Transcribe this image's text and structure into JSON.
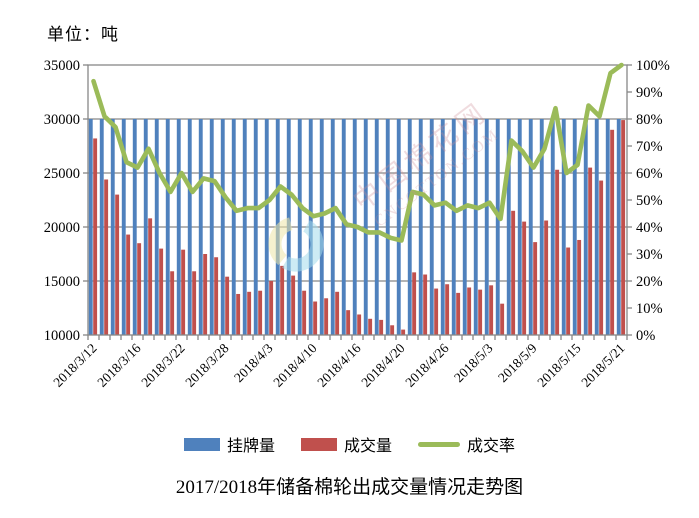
{
  "unit_label": "单位：吨",
  "main_title": "2017/2018年储备棉轮出成交量情况走势图",
  "watermark": {
    "line1": "中国棉花网",
    "line2": "CNCOTTON.COM"
  },
  "colors": {
    "listed_bar": "#4F81BD",
    "traded_bar": "#C0504D",
    "rate_line": "#9BBB59",
    "grid": "#878787",
    "text": "#000000",
    "watermark_cyan": "#A6DBEC",
    "watermark_yellow": "#EDE6A9"
  },
  "legend": [
    {
      "label": "挂牌量",
      "color": "#4F81BD",
      "type": "bar"
    },
    {
      "label": "成交量",
      "color": "#C0504D",
      "type": "bar"
    },
    {
      "label": "成交率",
      "color": "#9BBB59",
      "type": "line"
    }
  ],
  "chart_data": {
    "type": "bar+line combo",
    "grid": true,
    "legend_position": "bottom",
    "left_axis": {
      "min": 10000,
      "max": 35000,
      "step": 5000,
      "unit": "吨"
    },
    "right_axis": {
      "min": 0,
      "max": 100,
      "step": 10,
      "format": "percent"
    },
    "x_tick_every": 4,
    "categories": [
      "2018/3/12",
      "2018/3/13",
      "2018/3/14",
      "2018/3/15",
      "2018/3/16",
      "2018/3/19",
      "2018/3/20",
      "2018/3/21",
      "2018/3/22",
      "2018/3/23",
      "2018/3/26",
      "2018/3/27",
      "2018/3/28",
      "2018/3/29",
      "2018/3/30",
      "2018/4/2",
      "2018/4/3",
      "2018/4/4",
      "2018/4/8",
      "2018/4/9",
      "2018/4/10",
      "2018/4/11",
      "2018/4/12",
      "2018/4/13",
      "2018/4/16",
      "2018/4/17",
      "2018/4/18",
      "2018/4/19",
      "2018/4/20",
      "2018/4/23",
      "2018/4/24",
      "2018/4/25",
      "2018/4/26",
      "2018/4/27",
      "2018/4/28",
      "2018/5/2",
      "2018/5/3",
      "2018/5/4",
      "2018/5/7",
      "2018/5/8",
      "2018/5/9",
      "2018/5/10",
      "2018/5/11",
      "2018/5/14",
      "2018/5/15",
      "2018/5/16",
      "2018/5/17",
      "2018/5/18",
      "2018/5/21"
    ],
    "x_tick_labels": [
      "2018/3/12",
      "2018/3/16",
      "2018/3/22",
      "2018/3/28",
      "2018/4/3",
      "2018/4/10",
      "2018/4/16",
      "2018/4/20",
      "2018/4/26",
      "2018/5/3",
      "2018/5/9",
      "2018/5/15",
      "2018/5/21"
    ],
    "series": [
      {
        "name": "挂牌量",
        "type": "bar",
        "axis": "left",
        "color": "#4F81BD",
        "values": [
          30000,
          30000,
          30000,
          30000,
          30000,
          30000,
          30000,
          30000,
          30000,
          30000,
          30000,
          30000,
          30000,
          30000,
          30000,
          30000,
          30000,
          30000,
          30000,
          30000,
          30000,
          30000,
          30000,
          30000,
          30000,
          30000,
          30000,
          30000,
          30000,
          30000,
          30000,
          30000,
          30000,
          30000,
          30000,
          30000,
          30000,
          30000,
          30000,
          30000,
          30000,
          30000,
          30000,
          30000,
          30000,
          30000,
          30000,
          30000,
          30000
        ]
      },
      {
        "name": "成交量",
        "type": "bar",
        "axis": "left",
        "color": "#C0504D",
        "values": [
          28200,
          24400,
          23000,
          19300,
          18500,
          20800,
          18000,
          15900,
          17900,
          15900,
          17500,
          17200,
          15400,
          13800,
          14000,
          14100,
          15000,
          16400,
          15500,
          14100,
          13100,
          13400,
          14000,
          12300,
          11900,
          11500,
          11400,
          10900,
          10500,
          15800,
          15600,
          14300,
          14700,
          13900,
          14400,
          14200,
          14600,
          12900,
          21500,
          20500,
          18600,
          20600,
          25300,
          18100,
          18800,
          25500,
          24300,
          29000,
          29900
        ]
      },
      {
        "name": "成交率",
        "type": "line",
        "axis": "right",
        "color": "#9BBB59",
        "values": [
          94,
          81,
          77,
          64,
          62,
          69,
          60,
          53,
          60,
          53,
          58,
          57,
          51,
          46,
          47,
          47,
          50,
          55,
          52,
          47,
          44,
          45,
          47,
          41,
          40,
          38,
          38,
          36,
          35,
          53,
          52,
          48,
          49,
          46,
          48,
          47,
          49,
          43,
          72,
          68,
          62,
          69,
          84,
          60,
          63,
          85,
          81,
          97,
          100
        ]
      }
    ]
  }
}
